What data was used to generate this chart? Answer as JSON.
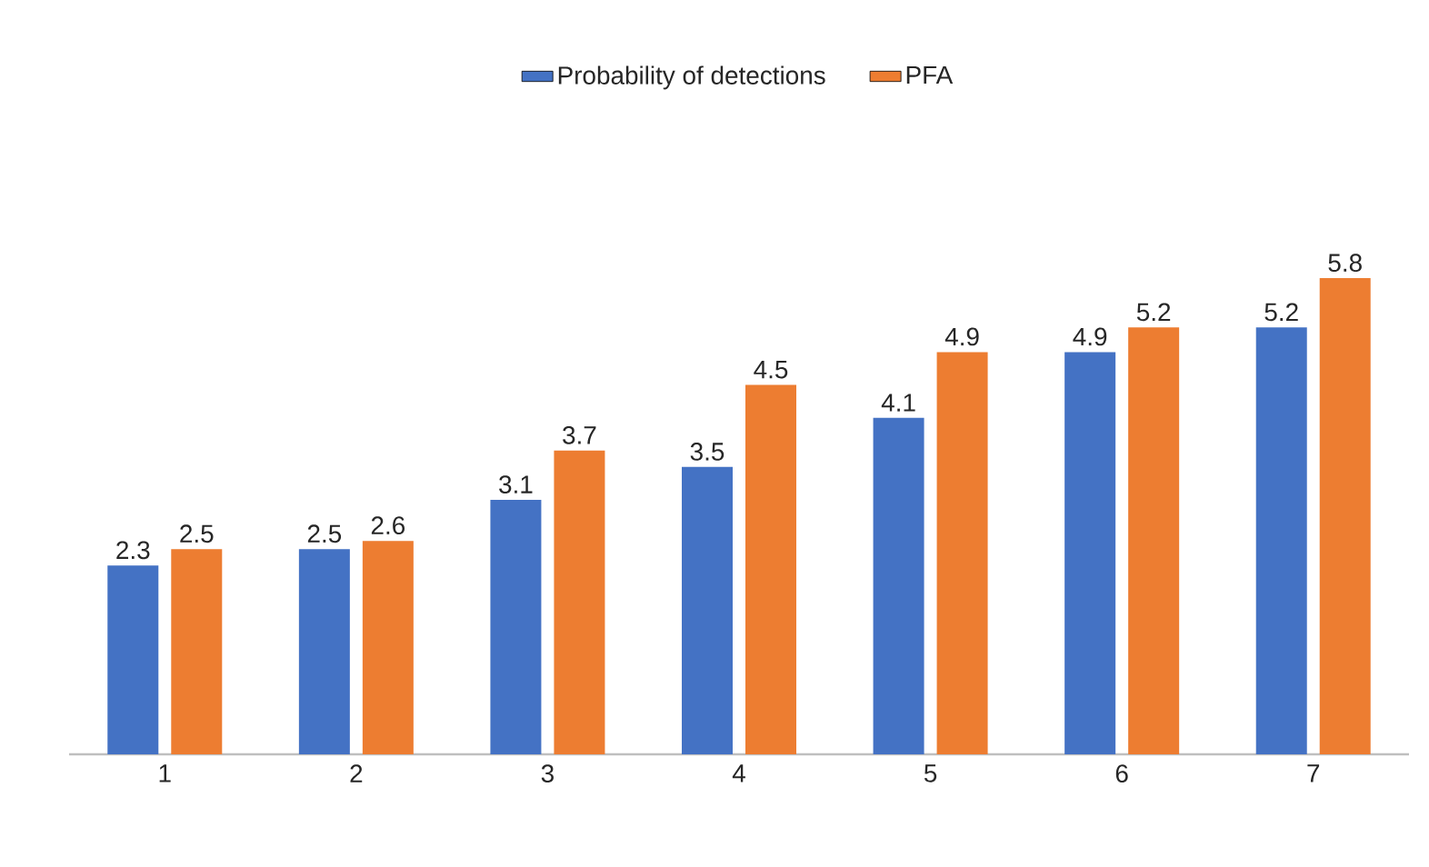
{
  "chart_data": {
    "type": "bar",
    "categories": [
      "1",
      "2",
      "3",
      "4",
      "5",
      "6",
      "7"
    ],
    "series": [
      {
        "name": "Probability of detections",
        "color": "#4472c4",
        "values": [
          2.3,
          2.5,
          3.1,
          3.5,
          4.1,
          4.9,
          5.2
        ]
      },
      {
        "name": "PFA",
        "color": "#ed7d31",
        "values": [
          2.5,
          2.6,
          3.7,
          4.5,
          4.9,
          5.2,
          5.8
        ]
      }
    ],
    "data_labels": true,
    "legend": "top",
    "grid": false,
    "tick_labels": "x"
  }
}
